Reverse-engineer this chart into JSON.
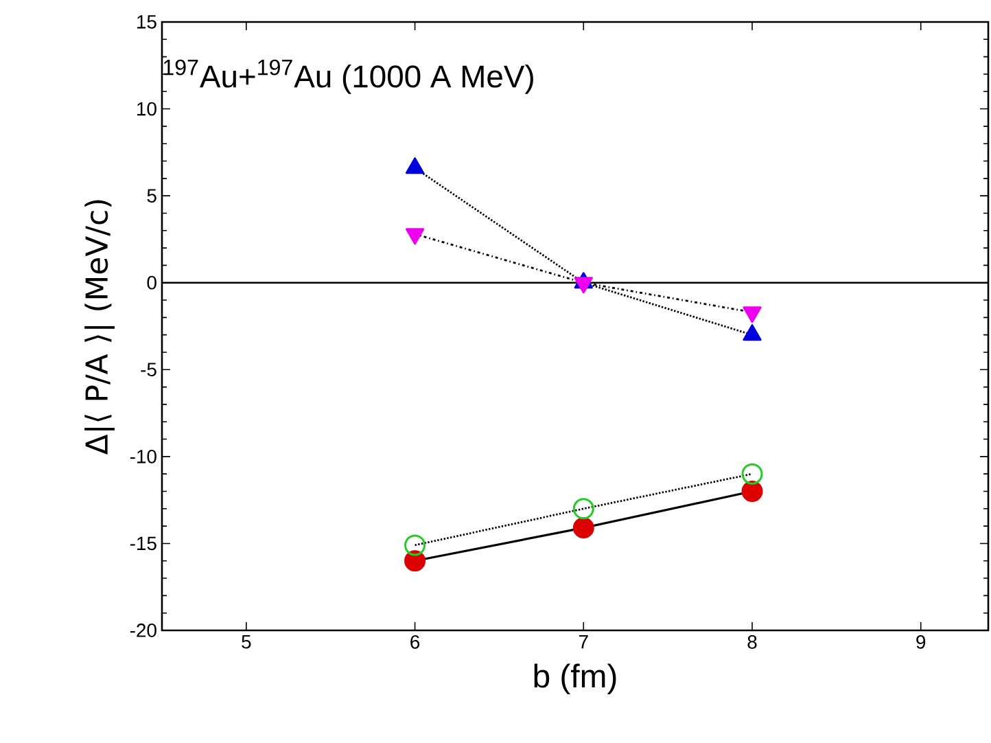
{
  "chart_data": {
    "type": "line",
    "xlabel": "b (fm)",
    "ylabel": "Δ|⟨ P/A ⟩| (MeV/c)",
    "annotations": [
      "$^{197}$Au+$^{197}$Au (1000 A MeV)"
    ],
    "x": [
      6,
      7,
      8
    ],
    "series": [
      {
        "color": "#0000dd",
        "marker": "triangle",
        "line_style": "dotted",
        "values": [
          6.6,
          0,
          -3.0
        ]
      },
      {
        "color": "#ee00ee",
        "marker": "triangle_down",
        "line_style": "dashed",
        "values": [
          2.8,
          0,
          -1.7
        ]
      },
      {
        "color": "#dd0000",
        "marker": "circle",
        "line_style": "solid",
        "values": [
          -16.0,
          -14.1,
          -12.0
        ]
      },
      {
        "color": "#22cc22",
        "marker": "open circle",
        "line_style": "dotted",
        "values": [
          -15.1,
          -13.0,
          -11.0
        ]
      }
    ],
    "ref_lines": [
      {
        "axis": "y",
        "value": 0
      }
    ],
    "xlim": [
      4.5,
      9.4
    ],
    "ylim": [
      -20,
      15
    ],
    "xticks": [
      5,
      6,
      7,
      8,
      9
    ],
    "yticks": [
      -20,
      -15,
      -10,
      -5,
      0,
      5,
      10,
      15
    ]
  }
}
